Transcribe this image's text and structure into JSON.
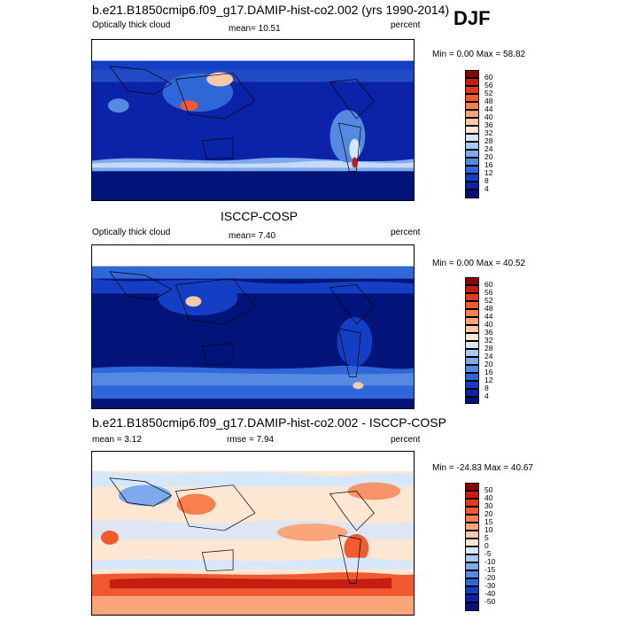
{
  "season": "DJF",
  "panels": [
    {
      "title": "b.e21.B1850cmip6.f09_g17.DAMIP-hist-co2.002 (yrs 1990-2014)",
      "left_label": "Optically thick cloud",
      "center_label": "mean=  10.51",
      "right_label": "percent",
      "minmax": "Min =   0.00 Max =  58.82",
      "colorbar_labels": [
        "60",
        "56",
        "52",
        "48",
        "44",
        "40",
        "36",
        "32",
        "28",
        "24",
        "20",
        "16",
        "12",
        "8",
        "4"
      ],
      "colorbar_colors": [
        "#8b0000",
        "#c51d12",
        "#e23a1f",
        "#f05a2e",
        "#f7804e",
        "#fba67a",
        "#fcc9a6",
        "#fde6d2",
        "#d6e6fb",
        "#a9c8f2",
        "#7ea9ea",
        "#5689e2",
        "#2f66d8",
        "#143fc4",
        "#0a23a8",
        "#02147a"
      ]
    },
    {
      "title": "ISCCP-COSP",
      "left_label": "Optically thick cloud",
      "center_label": "mean=   7.40",
      "right_label": "percent",
      "minmax": "Min =   0.00 Max =  40.52",
      "colorbar_labels": [
        "60",
        "56",
        "52",
        "48",
        "44",
        "40",
        "36",
        "32",
        "28",
        "24",
        "20",
        "16",
        "12",
        "8",
        "4"
      ],
      "colorbar_colors": [
        "#8b0000",
        "#c51d12",
        "#e23a1f",
        "#f05a2e",
        "#f7804e",
        "#fba67a",
        "#fcc9a6",
        "#fde6d2",
        "#d6e6fb",
        "#a9c8f2",
        "#7ea9ea",
        "#5689e2",
        "#2f66d8",
        "#143fc4",
        "#0a23a8",
        "#02147a"
      ]
    },
    {
      "title": "b.e21.B1850cmip6.f09_g17.DAMIP-hist-co2.002 - ISCCP-COSP",
      "left_label": "mean =   3.12",
      "center_label": "rmse =   7.94",
      "right_label": "percent",
      "minmax": "Min = -24.83 Max =  40.67",
      "colorbar_labels": [
        "50",
        "40",
        "30",
        "20",
        "15",
        "10",
        "5",
        "0",
        "-5",
        "-10",
        "-15",
        "-20",
        "-30",
        "-40",
        "-50"
      ],
      "colorbar_colors": [
        "#8b0000",
        "#c51d12",
        "#e23a1f",
        "#f05a2e",
        "#f7804e",
        "#fba67a",
        "#fcc9a6",
        "#fde6d2",
        "#d6e6fb",
        "#a9c8f2",
        "#7ea9ea",
        "#5689e2",
        "#2f66d8",
        "#143fc4",
        "#0a23a8",
        "#02147a"
      ]
    }
  ]
}
